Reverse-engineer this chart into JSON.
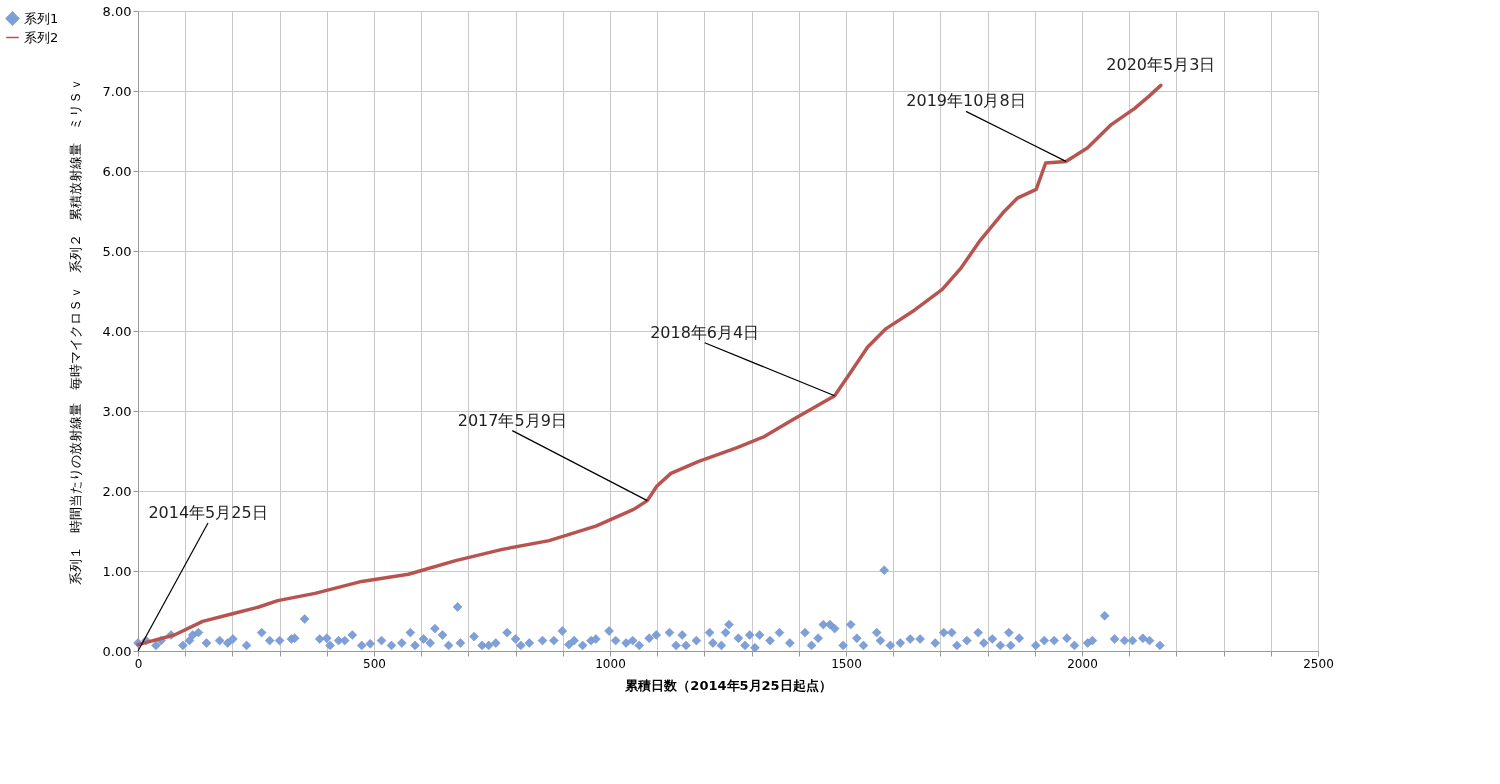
{
  "chart_data": {
    "type": "scatter",
    "xlabel": "累積日数（2014年5月25日起点）",
    "ylabel": "系列１　時間当たりの放射線量　毎時マイクロＳｖ　系列２　累積放射線量　ミリＳｖ",
    "xlim": [
      0,
      2500
    ],
    "xticks": [
      0,
      {
        "value": 100,
        "label": null
      },
      {
        "value": 200,
        "label": null
      },
      {
        "value": 300,
        "label": null
      },
      {
        "value": 400,
        "label": null
      },
      500,
      {
        "value": 600,
        "label": null
      },
      {
        "value": 700,
        "label": null
      },
      {
        "value": 800,
        "label": null
      },
      {
        "value": 900,
        "label": null
      },
      1000,
      {
        "value": 1100,
        "label": null
      },
      {
        "value": 1200,
        "label": null
      },
      {
        "value": 1300,
        "label": null
      },
      {
        "value": 1400,
        "label": null
      },
      1500,
      {
        "value": 1600,
        "label": null
      },
      {
        "value": 1700,
        "label": null
      },
      {
        "value": 1800,
        "label": null
      },
      {
        "value": 1900,
        "label": null
      },
      2000,
      {
        "value": 2100,
        "label": null
      },
      {
        "value": 2200,
        "label": null
      },
      {
        "value": 2300,
        "label": null
      },
      {
        "value": 2400,
        "label": null
      },
      2500
    ],
    "ylim": [
      0,
      8
    ],
    "yticks": [
      {
        "value": 0,
        "label": "0.00"
      },
      {
        "value": 1,
        "label": "1.00"
      },
      {
        "value": 2,
        "label": "2.00"
      },
      {
        "value": 3,
        "label": "3.00"
      },
      {
        "value": 4,
        "label": "4.00"
      },
      {
        "value": 5,
        "label": "5.00"
      },
      {
        "value": 6,
        "label": "6.00"
      },
      {
        "value": 7,
        "label": "7.00"
      },
      {
        "value": 8,
        "label": "8.00"
      }
    ],
    "grid": true,
    "legend": "top left",
    "series": [
      {
        "name": "系列1",
        "type": "scatter",
        "marker": "diamond",
        "color": "#7f9fd8",
        "x": [
          0,
          17,
          38,
          49,
          70,
          95,
          109,
          116,
          128,
          145,
          173,
          190,
          201,
          230,
          262,
          279,
          300,
          325,
          332,
          353,
          385,
          400,
          407,
          425,
          438,
          454,
          474,
          492,
          516,
          537,
          559,
          577,
          587,
          605,
          619,
          629,
          645,
          658,
          677,
          683,
          712,
          729,
          743,
          758,
          782,
          800,
          811,
          829,
          857,
          881,
          899,
          913,
          924,
          942,
          960,
          970,
          998,
          1012,
          1034,
          1048,
          1062,
          1083,
          1098,
          1126,
          1140,
          1153,
          1161,
          1183,
          1211,
          1218,
          1236,
          1245,
          1252,
          1272,
          1286,
          1296,
          1307,
          1317,
          1339,
          1359,
          1381,
          1413,
          1427,
          1441,
          1452,
          1466,
          1476,
          1494,
          1510,
          1523,
          1537,
          1565,
          1573,
          1581,
          1594,
          1615,
          1636,
          1657,
          1689,
          1707,
          1724,
          1735,
          1756,
          1780,
          1792,
          1810,
          1827,
          1845,
          1849,
          1867,
          1902,
          1920,
          1941,
          1968,
          1984,
          2012,
          2022,
          2048,
          2069,
          2090,
          2107,
          2129,
          2143,
          2165
        ],
        "values": [
          0.1,
          0.13,
          0.07,
          0.13,
          0.2,
          0.07,
          0.13,
          0.2,
          0.23,
          0.1,
          0.13,
          0.1,
          0.15,
          0.07,
          0.23,
          0.13,
          0.13,
          0.15,
          0.16,
          0.4,
          0.15,
          0.16,
          0.07,
          0.13,
          0.13,
          0.2,
          0.07,
          0.09,
          0.13,
          0.07,
          0.1,
          0.23,
          0.07,
          0.15,
          0.1,
          0.28,
          0.2,
          0.07,
          0.55,
          0.1,
          0.18,
          0.07,
          0.07,
          0.1,
          0.23,
          0.15,
          0.07,
          0.1,
          0.13,
          0.13,
          0.25,
          0.08,
          0.13,
          0.07,
          0.13,
          0.15,
          0.25,
          0.13,
          0.1,
          0.13,
          0.07,
          0.16,
          0.2,
          0.23,
          0.07,
          0.2,
          0.07,
          0.13,
          0.23,
          0.1,
          0.07,
          0.23,
          0.33,
          0.16,
          0.07,
          0.2,
          0.04,
          0.2,
          0.13,
          0.23,
          0.1,
          0.23,
          0.07,
          0.16,
          0.33,
          0.33,
          0.28,
          0.07,
          0.33,
          0.16,
          0.07,
          0.23,
          0.13,
          1.01,
          0.07,
          0.1,
          0.15,
          0.15,
          0.1,
          0.23,
          0.23,
          0.07,
          0.13,
          0.23,
          0.1,
          0.15,
          0.07,
          0.23,
          0.07,
          0.16,
          0.07,
          0.13,
          0.13,
          0.16,
          0.07,
          0.1,
          0.13,
          0.44,
          0.15,
          0.13,
          0.13,
          0.16,
          0.13,
          0.07
        ]
      },
      {
        "name": "系列2",
        "type": "line",
        "marker": "none",
        "line_style": "solid",
        "color": "#b85450",
        "x": [
          0,
          77,
          137,
          196,
          256,
          296,
          375,
          474,
          573,
          673,
          772,
          871,
          970,
          1050,
          1079,
          1099,
          1129,
          1188,
          1268,
          1327,
          1387,
          1476,
          1506,
          1546,
          1585,
          1645,
          1704,
          1744,
          1784,
          1833,
          1863,
          1903,
          1923,
          1966,
          2012,
          2062,
          2111,
          2141,
          2167
        ],
        "values": [
          0.08,
          0.2,
          0.37,
          0.46,
          0.55,
          0.63,
          0.72,
          0.87,
          0.96,
          1.13,
          1.27,
          1.38,
          1.56,
          1.77,
          1.88,
          2.06,
          2.22,
          2.37,
          2.54,
          2.68,
          2.89,
          3.19,
          3.45,
          3.8,
          4.03,
          4.26,
          4.52,
          4.79,
          5.13,
          5.48,
          5.66,
          5.77,
          6.1,
          6.12,
          6.29,
          6.58,
          6.78,
          6.93,
          7.07
        ]
      }
    ],
    "annotations": [
      {
        "text": "2014年5月25日",
        "x": 0,
        "y": 0
      },
      {
        "text": "2017年5月9日",
        "x": 1079,
        "y": 1.88
      },
      {
        "text": "2018年6月4日",
        "x": 1476,
        "y": 3.19
      },
      {
        "text": "2019年10月8日",
        "x": 1966,
        "y": 6.12
      },
      {
        "text": "2020年5月3日",
        "x": 2167,
        "y": 7.07
      }
    ]
  }
}
